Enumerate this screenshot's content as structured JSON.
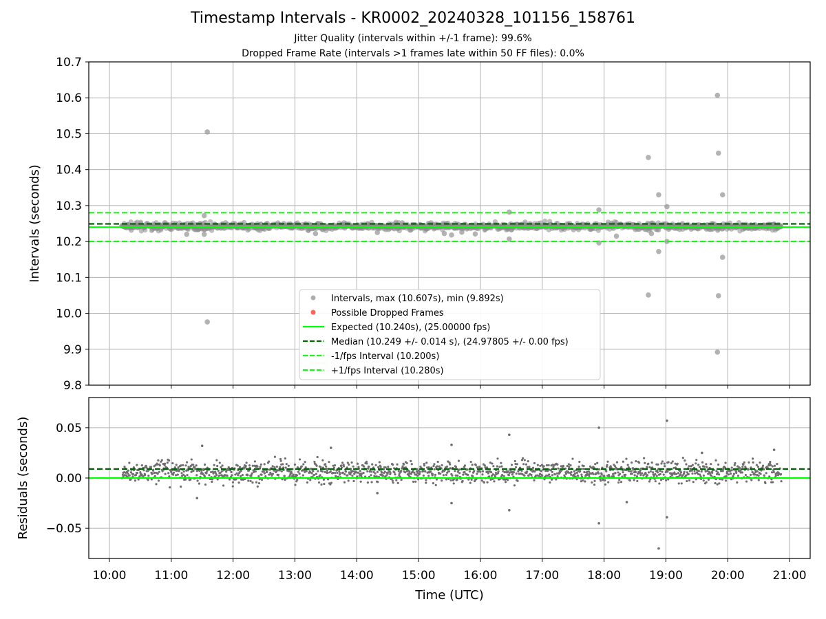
{
  "chart_data": [
    {
      "type": "scatter",
      "title": "Timestamp Intervals - KR0002_20240328_101156_158761",
      "subtitle_lines": [
        "Jitter Quality (intervals within +/-1 frame): 99.6%",
        "Dropped Frame Rate (intervals >1 frames late within 50 FF files): 0.0%"
      ],
      "ylabel": "Intervals (seconds)",
      "xlim": [
        "09:40",
        "21:20"
      ],
      "ylim": [
        9.8,
        10.7
      ],
      "yticks": [
        9.8,
        9.9,
        10.0,
        10.1,
        10.2,
        10.3,
        10.4,
        10.5,
        10.6,
        10.7
      ],
      "ytick_labels": [
        "9.8",
        "9.9",
        "10.0",
        "10.1",
        "10.2",
        "10.3",
        "10.4",
        "10.5",
        "10.6",
        "10.7"
      ],
      "grid": true,
      "legend_position": "lower center",
      "main_band": {
        "x_start": "10:12",
        "x_end": "20:52",
        "center": 10.242,
        "spread": 0.012
      },
      "series": [
        {
          "name": "Intervals, max (10.607s), min (9.892s)",
          "color": "#999999",
          "outliers": [
            {
              "x": "11:35",
              "y": 10.505
            },
            {
              "x": "11:35",
              "y": 9.976
            },
            {
              "x": "11:32",
              "y": 10.272
            },
            {
              "x": "11:15",
              "y": 10.22
            },
            {
              "x": "11:32",
              "y": 10.22
            },
            {
              "x": "13:20",
              "y": 10.222
            },
            {
              "x": "14:20",
              "y": 10.225
            },
            {
              "x": "15:25",
              "y": 10.222
            },
            {
              "x": "15:32",
              "y": 10.218
            },
            {
              "x": "15:42",
              "y": 10.226
            },
            {
              "x": "15:55",
              "y": 10.221
            },
            {
              "x": "16:28",
              "y": 10.282
            },
            {
              "x": "16:28",
              "y": 10.207
            },
            {
              "x": "17:55",
              "y": 10.288
            },
            {
              "x": "17:55",
              "y": 10.196
            },
            {
              "x": "18:12",
              "y": 10.215
            },
            {
              "x": "18:43",
              "y": 10.434
            },
            {
              "x": "18:43",
              "y": 10.051
            },
            {
              "x": "18:46",
              "y": 10.222
            },
            {
              "x": "18:53",
              "y": 10.33
            },
            {
              "x": "18:53",
              "y": 10.172
            },
            {
              "x": "19:01",
              "y": 10.297
            },
            {
              "x": "19:01",
              "y": 10.2
            },
            {
              "x": "19:50",
              "y": 10.607
            },
            {
              "x": "19:51",
              "y": 10.446
            },
            {
              "x": "19:51",
              "y": 10.049
            },
            {
              "x": "19:50",
              "y": 9.892
            },
            {
              "x": "19:55",
              "y": 10.33
            },
            {
              "x": "19:55",
              "y": 10.156
            }
          ]
        },
        {
          "name": "Possible Dropped Frames",
          "color": "#ff3b30",
          "points": []
        }
      ],
      "reference_lines": [
        {
          "name": "Expected (10.240s), (25.00000 fps)",
          "y": 10.24,
          "color": "#00ff00",
          "style": "solid"
        },
        {
          "name": "Median (10.249 +/- 0.014 s), (24.97805 +/- 0.00 fps)",
          "y": 10.249,
          "color": "#006400",
          "style": "dashed"
        },
        {
          "name": "-1/fps Interval (10.200s)",
          "y": 10.2,
          "color": "#22ee22",
          "style": "dashed"
        },
        {
          "name": "+1/fps Interval (10.280s)",
          "y": 10.28,
          "color": "#22ee22",
          "style": "dashed"
        }
      ]
    },
    {
      "type": "scatter",
      "ylabel": "Residuals (seconds)",
      "xlabel": "Time (UTC)",
      "xlim": [
        "09:40",
        "21:20"
      ],
      "ylim": [
        -0.08,
        0.08
      ],
      "xticks": [
        "10:00",
        "11:00",
        "12:00",
        "13:00",
        "14:00",
        "15:00",
        "16:00",
        "17:00",
        "18:00",
        "19:00",
        "20:00",
        "21:00"
      ],
      "yticks": [
        -0.05,
        0.0,
        0.05
      ],
      "ytick_labels": [
        "−0.05",
        "0.00",
        "0.05"
      ],
      "grid": true,
      "main_band": {
        "x_start": "10:12",
        "x_end": "20:52",
        "center": 0.006,
        "spread": 0.009
      },
      "series": [
        {
          "name": "Residuals",
          "color": "#777777",
          "outliers": [
            {
              "x": "11:30",
              "y": 0.032
            },
            {
              "x": "11:25",
              "y": -0.02
            },
            {
              "x": "13:35",
              "y": 0.03
            },
            {
              "x": "14:20",
              "y": -0.015
            },
            {
              "x": "15:32",
              "y": 0.033
            },
            {
              "x": "15:32",
              "y": -0.025
            },
            {
              "x": "16:28",
              "y": 0.043
            },
            {
              "x": "16:28",
              "y": -0.032
            },
            {
              "x": "17:55",
              "y": 0.05
            },
            {
              "x": "17:55",
              "y": -0.045
            },
            {
              "x": "18:22",
              "y": -0.024
            },
            {
              "x": "18:53",
              "y": -0.07
            },
            {
              "x": "19:01",
              "y": 0.057
            },
            {
              "x": "19:01",
              "y": -0.039
            },
            {
              "x": "19:35",
              "y": 0.025
            },
            {
              "x": "20:45",
              "y": 0.028
            }
          ]
        }
      ],
      "reference_lines": [
        {
          "y": 0.0,
          "color": "#00ff00",
          "style": "solid"
        },
        {
          "y": 0.009,
          "color": "#006400",
          "style": "dashed"
        }
      ]
    }
  ]
}
